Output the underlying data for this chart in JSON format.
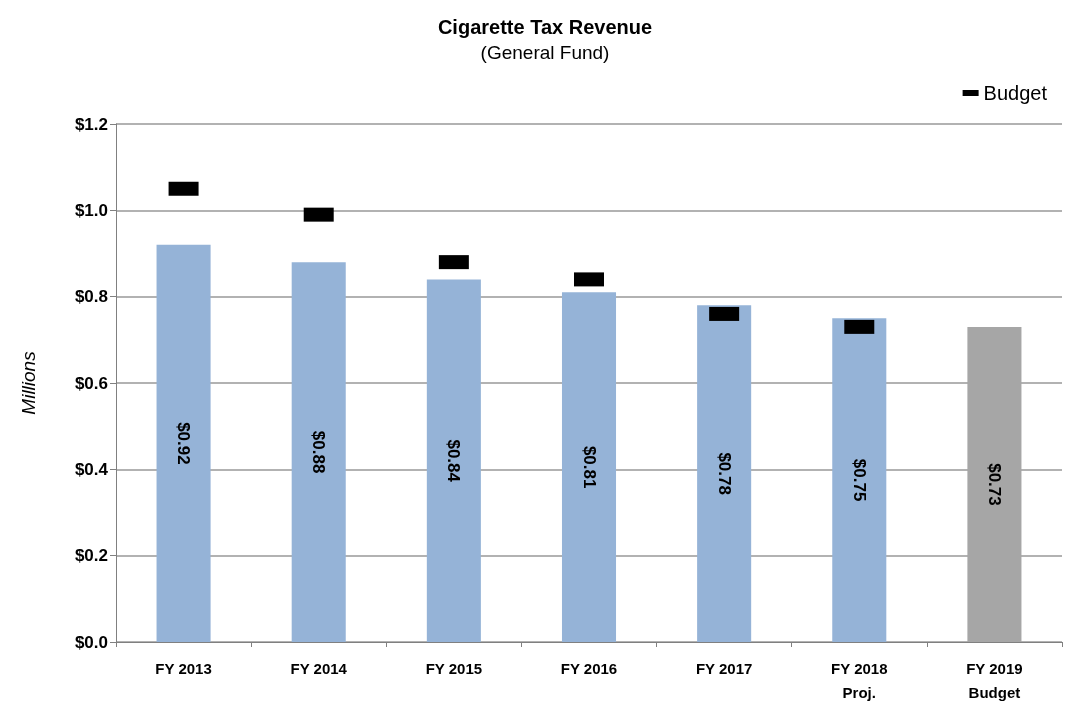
{
  "chart_data": {
    "type": "bar",
    "title": "Cigarette Tax Revenue",
    "subtitle": "(General Fund)",
    "ylabel": "Millions",
    "categories": [
      "FY 2013",
      "FY 2014",
      "FY 2015",
      "FY 2016",
      "FY 2017",
      "FY 2018\nProj.",
      "FY 2019\nBudget"
    ],
    "series": [
      {
        "type": "bar",
        "colors": [
          "#95b3d7",
          "#95b3d7",
          "#95b3d7",
          "#95b3d7",
          "#95b3d7",
          "#95b3d7",
          "#a6a6a6"
        ],
        "values": [
          0.92,
          0.88,
          0.84,
          0.81,
          0.78,
          0.75,
          0.73
        ],
        "value_labels": [
          "$0.92",
          "$0.88",
          "$0.84",
          "$0.81",
          "$0.78",
          "$0.75",
          "$0.73"
        ]
      },
      {
        "type": "scatter",
        "name": "Budget",
        "color": "#000000",
        "marker": "square",
        "values": [
          1.05,
          0.99,
          0.88,
          0.84,
          0.76,
          0.73,
          null
        ]
      }
    ],
    "ylim": [
      0,
      1.2
    ],
    "yticks": [
      {
        "value": 0,
        "label": "$0.0"
      },
      {
        "value": 0.2,
        "label": "$0.2"
      },
      {
        "value": 0.4,
        "label": "$0.4"
      },
      {
        "value": 0.6,
        "label": "$0.6"
      },
      {
        "value": 0.8,
        "label": "$0.8"
      },
      {
        "value": 1,
        "label": "$1.0"
      },
      {
        "value": 1.2,
        "label": "$1.2"
      }
    ],
    "grid": "y",
    "legend": "top right"
  }
}
